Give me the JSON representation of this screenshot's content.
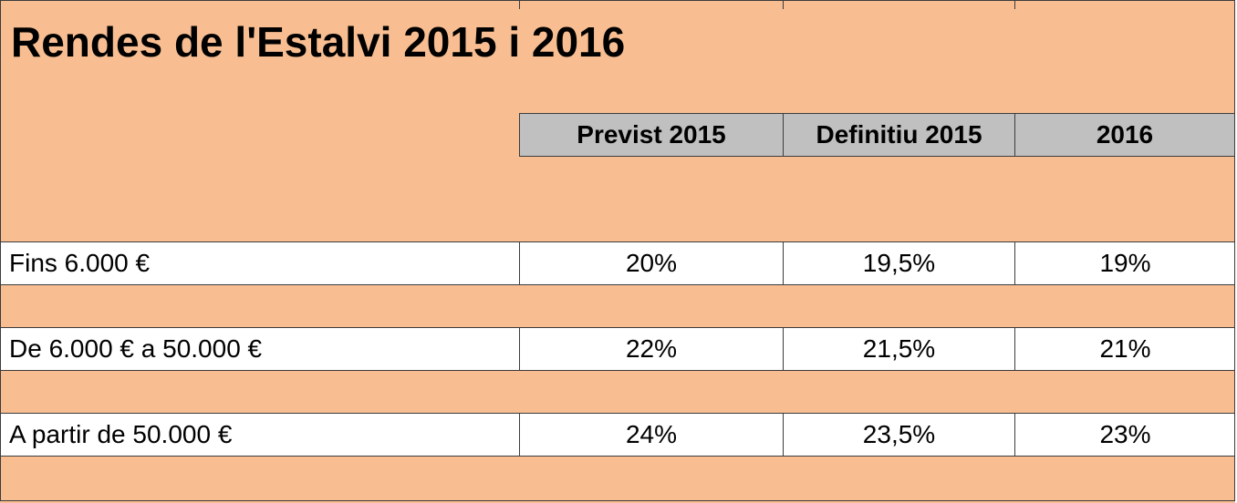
{
  "title": "Rendes de l'Estalvi 2015 i 2016",
  "colors": {
    "band": "#f8be92",
    "header": "#c0c0c0",
    "border": "#3c3c3c",
    "row": "#ffffff"
  },
  "columns": [
    "Previst 2015",
    "Definitiu 2015",
    "2016"
  ],
  "rows": [
    {
      "label": "Fins 6.000 €",
      "values": [
        "20%",
        "19,5%",
        "19%"
      ]
    },
    {
      "label": "De 6.000 € a 50.000 €",
      "values": [
        "22%",
        "21,5%",
        "21%"
      ]
    },
    {
      "label": "A partir de 50.000 €",
      "values": [
        "24%",
        "23,5%",
        "23%"
      ]
    }
  ]
}
